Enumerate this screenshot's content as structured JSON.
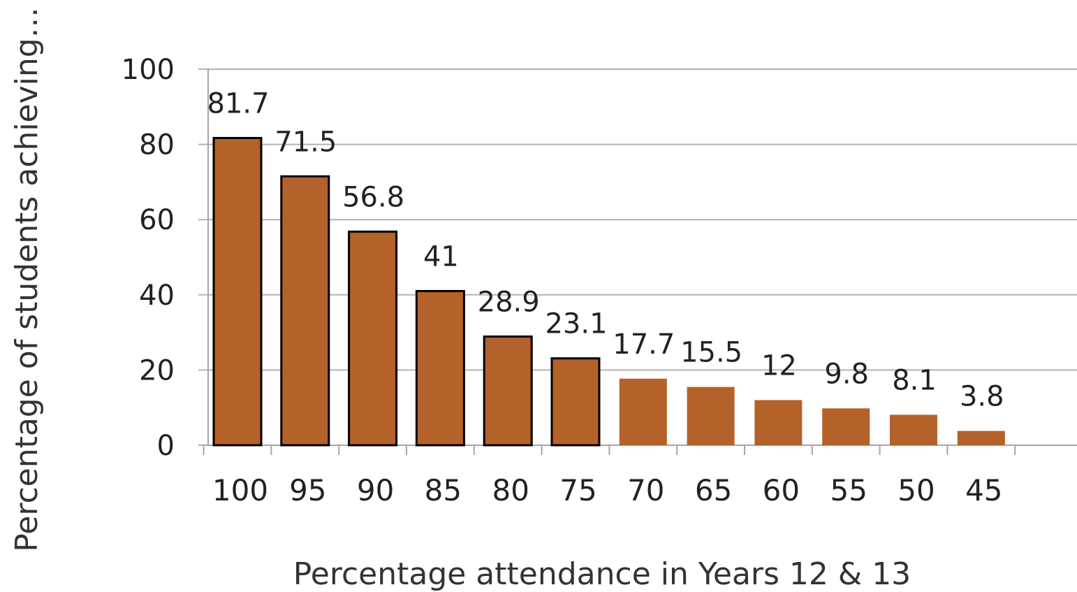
{
  "chart_data": {
    "type": "bar",
    "title": "",
    "xlabel": "Percentage attendance in Years 12 & 13",
    "ylabel": "Percentage of students achieving…",
    "categories": [
      "100",
      "95",
      "90",
      "85",
      "80",
      "75",
      "70",
      "65",
      "60",
      "55",
      "50",
      "45"
    ],
    "values": [
      81.7,
      71.5,
      56.8,
      41,
      28.9,
      23.1,
      17.7,
      15.5,
      12,
      9.8,
      8.1,
      3.8
    ],
    "data_labels": [
      "81.7",
      "71.5",
      "56.8",
      "41",
      "28.9",
      "23.1",
      "17.7",
      "15.5",
      "12",
      "9.8",
      "8.1",
      "3.8"
    ],
    "outlined": [
      true,
      true,
      true,
      true,
      true,
      true,
      false,
      false,
      false,
      false,
      false,
      false
    ],
    "ylim": [
      0,
      100
    ],
    "yticks": [
      0,
      20,
      40,
      60,
      80,
      100
    ],
    "grid": true,
    "legend": "none",
    "colors": {
      "bar": "#b5612a",
      "bar_outline": "#000000",
      "grid": "#b3b3b3"
    }
  }
}
